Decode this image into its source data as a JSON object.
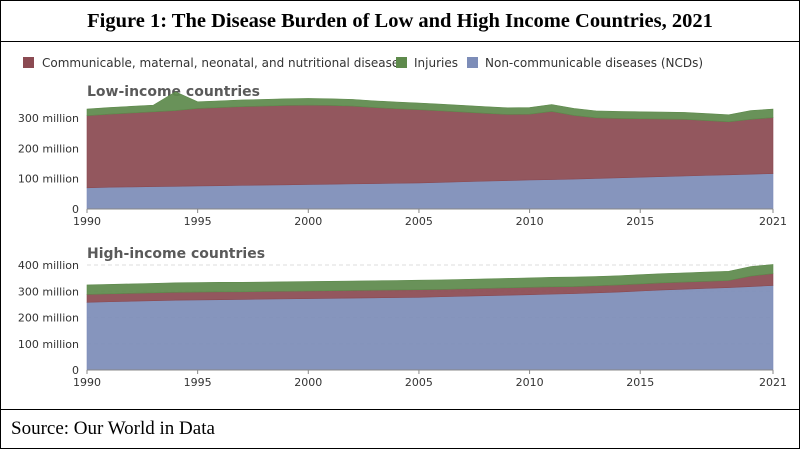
{
  "figure": {
    "title": "Figure 1: The Disease Burden of Low and High Income Countries, 2021",
    "source": "Source: Our World in Data"
  },
  "colors": {
    "communicable": "#8b4a52",
    "injuries": "#5e8a4c",
    "ncd": "#7d8db8",
    "text": "#333333",
    "subtitle": "#5a5a5a"
  },
  "chart_data": [
    {
      "type": "area",
      "stacked": true,
      "title": "Low-income countries",
      "legend_position": "top",
      "grid": false,
      "x": [
        1990,
        1991,
        1992,
        1993,
        1994,
        1995,
        1996,
        1997,
        1998,
        1999,
        2000,
        2001,
        2002,
        2003,
        2004,
        2005,
        2006,
        2007,
        2008,
        2009,
        2010,
        2011,
        2012,
        2013,
        2014,
        2015,
        2016,
        2017,
        2018,
        2019,
        2020,
        2021
      ],
      "ylim": [
        0,
        350000000
      ],
      "yticks": [
        0,
        100000000,
        200000000,
        300000000
      ],
      "ytick_labels": [
        "0",
        "100 million",
        "200 million",
        "300 million"
      ],
      "xtick_labels": [
        "1990",
        "1995",
        "2000",
        "2005",
        "2010",
        "2015",
        "2021"
      ],
      "series": [
        {
          "name": "Non-communicable diseases (NCDs)",
          "color": "#7d8db8",
          "values": [
            70000000,
            72000000,
            73000000,
            74000000,
            75000000,
            76000000,
            77000000,
            78000000,
            79000000,
            80000000,
            81000000,
            82000000,
            83000000,
            84000000,
            85000000,
            86000000,
            88000000,
            90000000,
            92000000,
            94000000,
            96000000,
            97000000,
            99000000,
            101000000,
            103000000,
            105000000,
            107000000,
            109000000,
            111000000,
            113000000,
            115000000,
            117000000
          ]
        },
        {
          "name": "Communicable, maternal, neonatal, and nutritional diseases",
          "color": "#8b4a52",
          "values": [
            238000000,
            241000000,
            244000000,
            247000000,
            250000000,
            256000000,
            258000000,
            260000000,
            261000000,
            262000000,
            262000000,
            260000000,
            257000000,
            251000000,
            246000000,
            242000000,
            236000000,
            230000000,
            224000000,
            218000000,
            217000000,
            225000000,
            210000000,
            200000000,
            196000000,
            193000000,
            190000000,
            187000000,
            181000000,
            175000000,
            181000000,
            185000000
          ]
        },
        {
          "name": "Injuries",
          "color": "#5e8a4c",
          "values": [
            22000000,
            22000000,
            22000000,
            22000000,
            62000000,
            22000000,
            22000000,
            22000000,
            22000000,
            22000000,
            22000000,
            22000000,
            22000000,
            22000000,
            22000000,
            22000000,
            22000000,
            22000000,
            22000000,
            22000000,
            22000000,
            23000000,
            23000000,
            23000000,
            23000000,
            23000000,
            23000000,
            23000000,
            23000000,
            23000000,
            29000000,
            28000000
          ]
        }
      ]
    },
    {
      "type": "area",
      "stacked": true,
      "title": "High-income countries",
      "legend_position": "top",
      "grid": true,
      "x": [
        1990,
        1991,
        1992,
        1993,
        1994,
        1995,
        1996,
        1997,
        1998,
        1999,
        2000,
        2001,
        2002,
        2003,
        2004,
        2005,
        2006,
        2007,
        2008,
        2009,
        2010,
        2011,
        2012,
        2013,
        2014,
        2015,
        2016,
        2017,
        2018,
        2019,
        2020,
        2021
      ],
      "ylim": [
        0,
        400000000
      ],
      "yticks": [
        0,
        100000000,
        200000000,
        300000000,
        400000000
      ],
      "ytick_labels": [
        "0",
        "100 million",
        "200 million",
        "300 million",
        "400 million"
      ],
      "xtick_labels": [
        "1990",
        "1995",
        "2000",
        "2005",
        "2010",
        "2015",
        "2021"
      ],
      "series": [
        {
          "name": "Non-communicable diseases (NCDs)",
          "color": "#7d8db8",
          "values": [
            258000000,
            260000000,
            262000000,
            264000000,
            266000000,
            267000000,
            268000000,
            269000000,
            270000000,
            271000000,
            272000000,
            273000000,
            274000000,
            275000000,
            276000000,
            277000000,
            279000000,
            281000000,
            283000000,
            285000000,
            287000000,
            289000000,
            291000000,
            294000000,
            297000000,
            301000000,
            305000000,
            308000000,
            311000000,
            314000000,
            318000000,
            322000000
          ]
        },
        {
          "name": "Communicable, maternal, neonatal, and nutritional diseases",
          "color": "#8b4a52",
          "values": [
            30000000,
            30000000,
            30000000,
            30000000,
            30000000,
            30000000,
            30000000,
            29000000,
            29000000,
            29000000,
            29000000,
            29000000,
            29000000,
            29000000,
            29000000,
            29000000,
            28000000,
            28000000,
            28000000,
            28000000,
            28000000,
            28000000,
            27000000,
            27000000,
            27000000,
            27000000,
            27000000,
            27000000,
            27000000,
            27000000,
            40000000,
            45000000
          ]
        },
        {
          "name": "Injuries",
          "color": "#5e8a4c",
          "values": [
            36000000,
            36000000,
            36000000,
            36000000,
            36000000,
            36000000,
            36000000,
            36000000,
            36000000,
            36000000,
            36000000,
            36000000,
            36000000,
            36000000,
            36000000,
            36000000,
            36000000,
            36000000,
            36000000,
            36000000,
            36000000,
            36000000,
            36000000,
            35000000,
            35000000,
            35000000,
            35000000,
            35000000,
            35000000,
            35000000,
            36000000,
            35000000
          ]
        }
      ]
    }
  ],
  "legend": [
    {
      "label": "Communicable, maternal, neonatal, and nutritional diseases",
      "color": "#8b4a52"
    },
    {
      "label": "Injuries",
      "color": "#5e8a4c"
    },
    {
      "label": "Non-communicable diseases (NCDs)",
      "color": "#7d8db8"
    }
  ]
}
